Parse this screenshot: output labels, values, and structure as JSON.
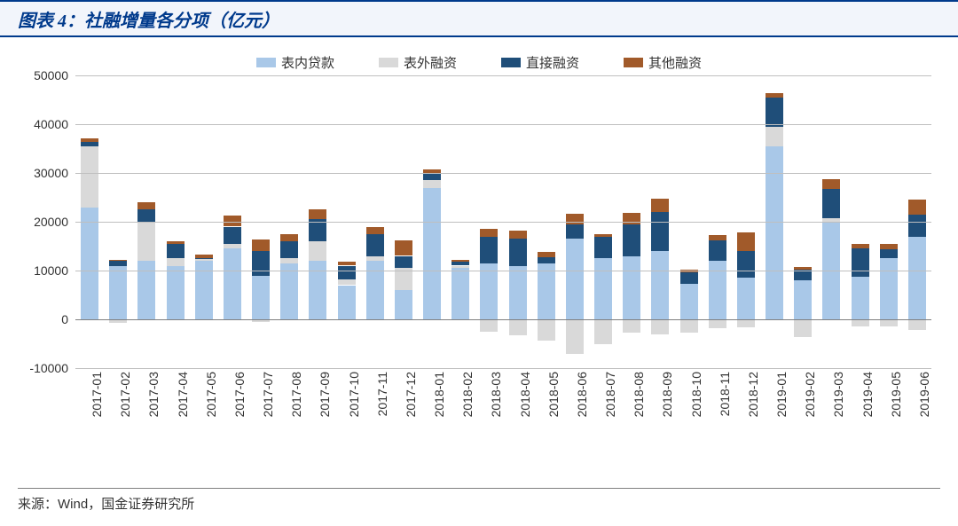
{
  "title": "图表 4：社融增量各分项（亿元）",
  "source": {
    "label": "来源：",
    "wind": "Wind",
    "rest": "，国金证券研究所"
  },
  "colors": {
    "series": {
      "on_balance": "#a9c8e8",
      "off_balance": "#d9d9d9",
      "direct": "#1f4e79",
      "other": "#a15a2a"
    },
    "grid": "#bfbfbf",
    "text": "#333333",
    "title_text": "#003a8c",
    "title_bg": "#f2f5fb"
  },
  "chart": {
    "type": "stacked-bar",
    "ylim": [
      -10000,
      50000
    ],
    "ytick_step": 10000,
    "bar_width": 0.62,
    "series_keys": [
      "on_balance",
      "off_balance",
      "direct",
      "other"
    ],
    "series_labels": {
      "on_balance": "表内贷款",
      "off_balance": "表外融资",
      "direct": "直接融资",
      "other": "其他融资"
    },
    "categories": [
      "2017-01",
      "2017-02",
      "2017-03",
      "2017-04",
      "2017-05",
      "2017-06",
      "2017-07",
      "2017-08",
      "2017-09",
      "2017-10",
      "2017-11",
      "2017-12",
      "2018-01",
      "2018-02",
      "2018-03",
      "2018-04",
      "2018-05",
      "2018-06",
      "2018-07",
      "2018-08",
      "2018-09",
      "2018-10",
      "2018-11",
      "2018-12",
      "2019-01",
      "2019-02",
      "2019-03",
      "2019-04",
      "2019-05",
      "2019-06"
    ],
    "data": {
      "on_balance": [
        23000,
        11000,
        12000,
        11000,
        12000,
        14500,
        9000,
        11500,
        12000,
        7000,
        12000,
        6000,
        27000,
        10500,
        11500,
        11000,
        11500,
        16500,
        12500,
        13000,
        14000,
        7200,
        12000,
        8500,
        35500,
        8000,
        20000,
        8800,
        12500,
        17000
      ],
      "off_balance": [
        12500,
        -800,
        8000,
        1500,
        400,
        1000,
        -600,
        1000,
        4000,
        1200,
        1000,
        4500,
        1500,
        500,
        -2600,
        -3200,
        -4300,
        -7000,
        -5000,
        -2700,
        -3000,
        -2700,
        -1900,
        -1700,
        4000,
        -3600,
        800,
        -1500,
        -1500,
        -2200
      ],
      "direct": [
        800,
        1000,
        2500,
        3000,
        200,
        3500,
        5000,
        3500,
        4500,
        2800,
        4500,
        2500,
        1500,
        800,
        5500,
        5500,
        1200,
        3000,
        4500,
        6500,
        8000,
        2500,
        4200,
        5500,
        6000,
        2200,
        6000,
        5800,
        1800,
        4500
      ],
      "other": [
        800,
        200,
        1500,
        500,
        600,
        2200,
        2300,
        1500,
        2000,
        800,
        1500,
        3200,
        800,
        400,
        1500,
        1600,
        1100,
        2200,
        500,
        2300,
        2800,
        500,
        1000,
        3800,
        800,
        600,
        2000,
        800,
        1200,
        3000
      ]
    }
  }
}
